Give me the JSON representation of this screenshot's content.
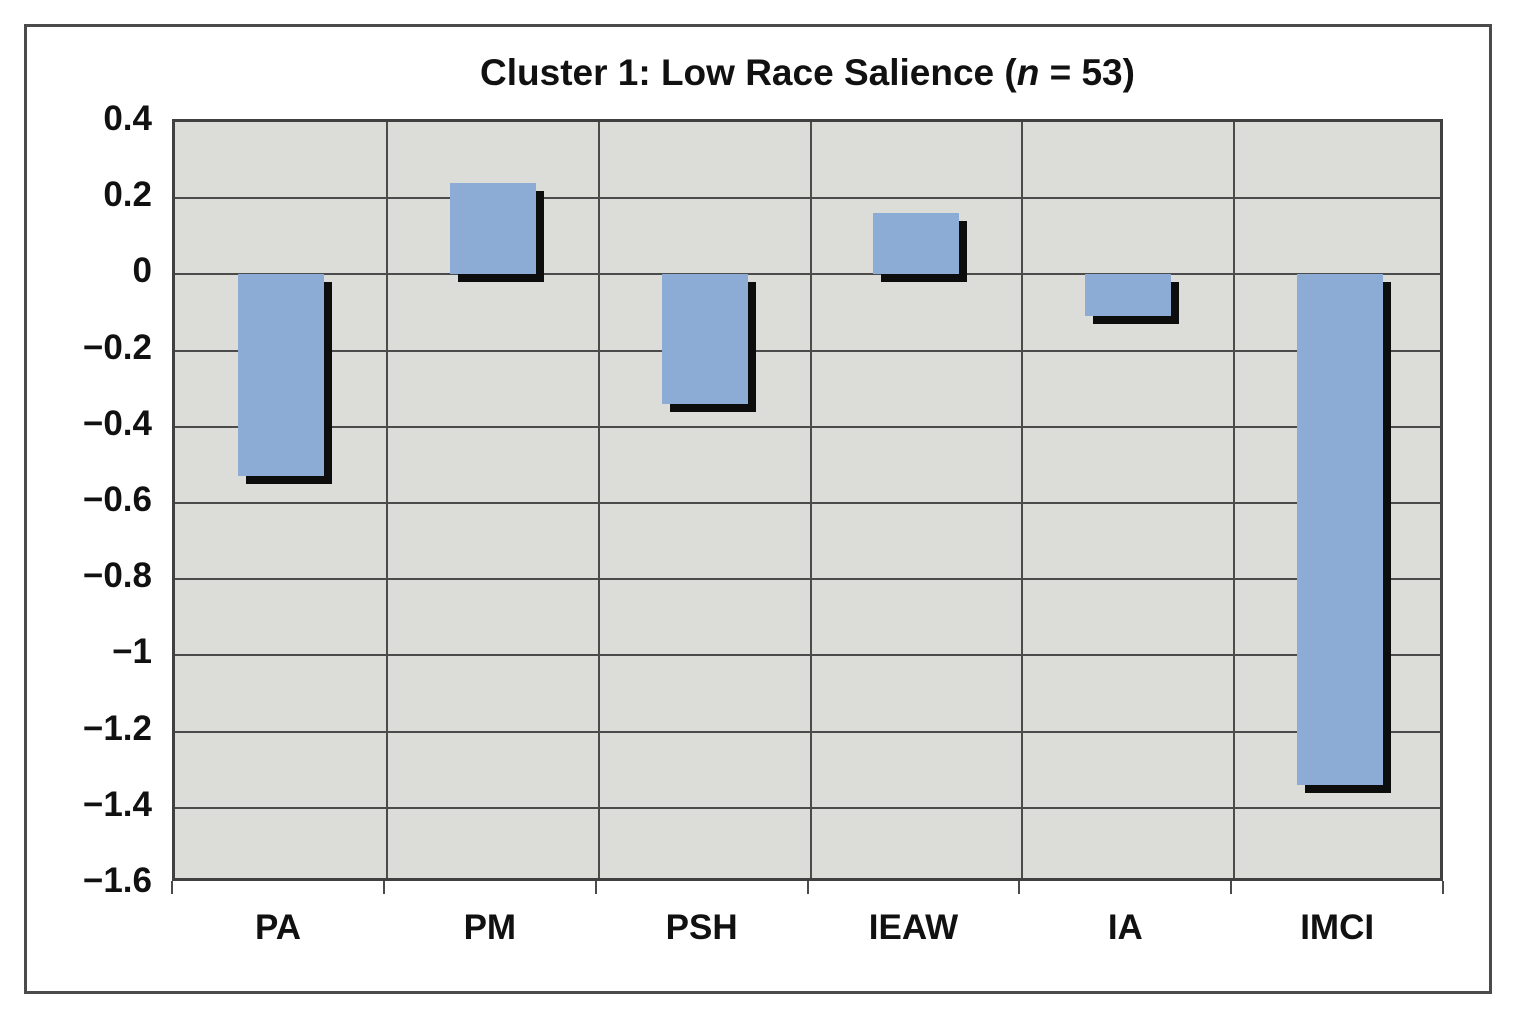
{
  "figure": {
    "title_prefix": "Cluster 1: Low Race Salience (",
    "title_n": "n",
    "title_suffix": " = 53)"
  },
  "chart_data": {
    "type": "bar",
    "title": "Cluster 1: Low Race Salience (n = 53)",
    "categories": [
      "PA",
      "PM",
      "PSH",
      "IEAW",
      "IA",
      "IMCI"
    ],
    "values": [
      -0.53,
      0.24,
      -0.34,
      0.16,
      -0.11,
      -1.34
    ],
    "ylim": [
      -1.6,
      0.4
    ],
    "ytick_step": 0.2,
    "ytick_labels": [
      "0.4",
      "0.2",
      "0",
      "−0.2",
      "−0.4",
      "−0.6",
      "−0.8",
      "−1",
      "−1.2",
      "−1.4",
      "−1.6"
    ],
    "xlabel": "",
    "ylabel": "",
    "grid": true,
    "legend": false,
    "colors": {
      "bar": "#8cacd6",
      "bar_shadow": "#0d0d0d",
      "plot_bg": "#dcdcd8",
      "grid": "#4b4b4b",
      "frame": "#4b4b4b",
      "text": "#111111",
      "page_bg": "#ffffff"
    }
  }
}
